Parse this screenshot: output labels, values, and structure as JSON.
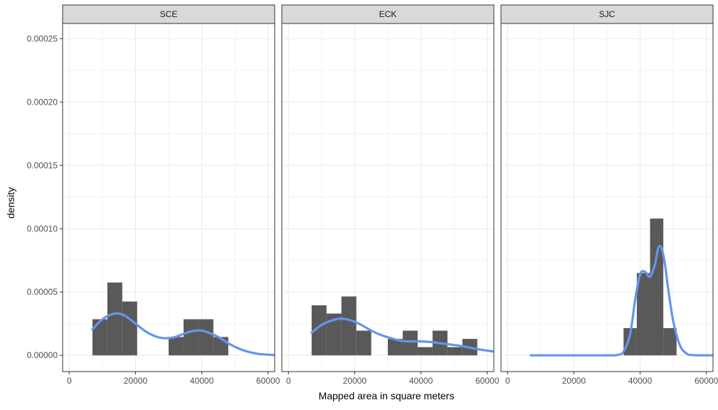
{
  "chart_data": {
    "type": "bar",
    "facets": [
      "SCE",
      "ECK",
      "SJC"
    ],
    "xlabel": "Mapped area in square meters",
    "ylabel": "density",
    "xlim": [
      -2000,
      62000
    ],
    "ylim": [
      -1.28e-05,
      0.000262
    ],
    "x_ticks": [
      0,
      20000,
      40000,
      60000
    ],
    "x_tick_labels": [
      "0",
      "20000",
      "40000",
      "60000"
    ],
    "y_ticks": [
      0,
      5e-05,
      0.0001,
      0.00015,
      0.0002,
      0.00025
    ],
    "y_tick_labels": [
      "0.00000",
      "0.00005",
      "0.00010",
      "0.00015",
      "0.00020",
      "0.00025"
    ],
    "grid": true,
    "colors": {
      "histogram": "#595959",
      "density": "#6495ED",
      "strip": "#d9d9d9",
      "grid": "#ebebeb"
    },
    "panels": [
      {
        "facet": "SCE",
        "histogram": {
          "bins": [
            {
              "x0": 7000,
              "x1": 11500,
              "density": 2.85e-05
            },
            {
              "x0": 11500,
              "x1": 16000,
              "density": 5.75e-05
            },
            {
              "x0": 16000,
              "x1": 20500,
              "density": 4.25e-05
            },
            {
              "x0": 30000,
              "x1": 34500,
              "density": 1.45e-05
            },
            {
              "x0": 34500,
              "x1": 39000,
              "density": 2.85e-05
            },
            {
              "x0": 39000,
              "x1": 43500,
              "density": 2.85e-05
            },
            {
              "x0": 43500,
              "x1": 48000,
              "density": 1.45e-05
            }
          ]
        },
        "density_line": {
          "x": [
            7000,
            10000,
            13000,
            15000,
            17000,
            20000,
            23000,
            26000,
            29000,
            32000,
            35000,
            38000,
            40000,
            42000,
            45000,
            48000,
            51000,
            54000,
            57000,
            60000,
            62000
          ],
          "y": [
            2.05e-05,
            2.85e-05,
            3.25e-05,
            3.3e-05,
            3.1e-05,
            2.5e-05,
            1.9e-05,
            1.5e-05,
            1.35e-05,
            1.45e-05,
            1.75e-05,
            1.95e-05,
            1.95e-05,
            1.8e-05,
            1.45e-05,
            9.5e-06,
            5.5e-06,
            2.8e-06,
            1.2e-06,
            5e-07,
            3e-07
          ]
        }
      },
      {
        "facet": "ECK",
        "histogram": {
          "bins": [
            {
              "x0": 7000,
              "x1": 11500,
              "density": 3.95e-05
            },
            {
              "x0": 11500,
              "x1": 16000,
              "density": 3.3e-05
            },
            {
              "x0": 16000,
              "x1": 20500,
              "density": 4.65e-05
            },
            {
              "x0": 20500,
              "x1": 25000,
              "density": 1.95e-05
            },
            {
              "x0": 30000,
              "x1": 34500,
              "density": 1.3e-05
            },
            {
              "x0": 34500,
              "x1": 39000,
              "density": 1.95e-05
            },
            {
              "x0": 39000,
              "x1": 43500,
              "density": 6.5e-06
            },
            {
              "x0": 43500,
              "x1": 48000,
              "density": 1.95e-05
            },
            {
              "x0": 48000,
              "x1": 52500,
              "density": 6.5e-06
            },
            {
              "x0": 52500,
              "x1": 57000,
              "density": 1.3e-05
            }
          ]
        },
        "density_line": {
          "x": [
            7000,
            10000,
            13000,
            16000,
            19000,
            22000,
            25000,
            28000,
            31000,
            34000,
            37000,
            40000,
            43000,
            46000,
            49000,
            52000,
            55000,
            58000,
            62000
          ],
          "y": [
            1.8e-05,
            2.4e-05,
            2.75e-05,
            2.9e-05,
            2.75e-05,
            2.4e-05,
            1.95e-05,
            1.6e-05,
            1.35e-05,
            1.15e-05,
            1.1e-05,
            1.1e-05,
            1.05e-05,
            9.5e-06,
            8.5e-06,
            7.5e-06,
            6e-06,
            4.5e-06,
            3e-06
          ]
        }
      },
      {
        "facet": "SJC",
        "histogram": {
          "bins": [
            {
              "x0": 35000,
              "x1": 39000,
              "density": 2.15e-05
            },
            {
              "x0": 39000,
              "x1": 43000,
              "density": 6.5e-05
            },
            {
              "x0": 43000,
              "x1": 47000,
              "density": 0.000108
            },
            {
              "x0": 47000,
              "x1": 51000,
              "density": 2.15e-05
            }
          ]
        },
        "density_line": {
          "x": [
            7000,
            20000,
            30000,
            33000,
            35000,
            37000,
            38500,
            40000,
            41500,
            43000,
            44500,
            45500,
            46500,
            47500,
            48500,
            50000,
            52000,
            54000,
            56000,
            62000
          ],
          "y": [
            0,
            0,
            0,
            3e-07,
            3e-06,
            1.7e-05,
            4.4e-05,
            6.4e-05,
            6.6e-05,
            6.2e-05,
            7.2e-05,
            8.5e-05,
            8.45e-05,
            7.2e-05,
            5.2e-05,
            2.7e-05,
            8e-06,
            1.5e-06,
            2e-07,
            0
          ]
        }
      }
    ]
  }
}
